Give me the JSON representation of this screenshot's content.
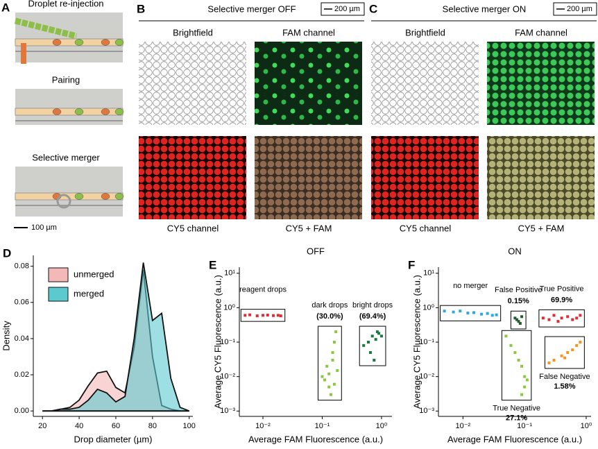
{
  "panels": {
    "A": {
      "label": "A",
      "images": [
        "Droplet re-injection",
        "Pairing",
        "Selective merger"
      ],
      "scale_bar": "100 µm"
    },
    "B": {
      "label": "B",
      "title": "Selective merger OFF",
      "scale_bar": "200 µm",
      "images": [
        "Brightfield",
        "FAM channel",
        "CY5 channel",
        "CY5 + FAM"
      ]
    },
    "C": {
      "label": "C",
      "title": "Selective merger ON",
      "scale_bar": "200 µm",
      "images": [
        "Brightfield",
        "FAM channel",
        "CY5 channel",
        "CY5 + FAM"
      ]
    }
  },
  "chart_data": [
    {
      "type": "area",
      "panel": "D",
      "xlabel": "Drop diameter (µm)",
      "ylabel": "Density",
      "x": [
        20,
        25,
        30,
        35,
        40,
        45,
        50,
        55,
        60,
        65,
        70,
        75,
        80,
        85,
        90,
        95,
        100
      ],
      "series": [
        {
          "name": "unmerged",
          "color": "#f4b8b8",
          "values": [
            0,
            0,
            0.001,
            0.002,
            0.006,
            0.014,
            0.021,
            0.022,
            0.013,
            0.01,
            0.035,
            0.078,
            0.03,
            0.003,
            0.001,
            0,
            0
          ]
        },
        {
          "name": "merged",
          "color": "#5cc9cf",
          "values": [
            0,
            0,
            0.001,
            0.001,
            0.002,
            0.006,
            0.012,
            0.01,
            0.005,
            0.008,
            0.04,
            0.082,
            0.05,
            0.054,
            0.018,
            0.002,
            0
          ]
        }
      ],
      "xlim": [
        15,
        102
      ],
      "xticks": [
        20,
        40,
        60,
        80,
        100
      ],
      "ylim": [
        -0.003,
        0.086
      ],
      "yticks": [
        {
          "value": 0,
          "label": "0.00"
        },
        0.02,
        0.04,
        0.06,
        0.08
      ],
      "legend": "upper left"
    },
    {
      "type": "scatter",
      "panel": "E",
      "title": "OFF",
      "log_x": true,
      "log_y": true,
      "xlabel": "Average FAM Fluorescence (a.u.)",
      "ylabel": "Average CY5 Fluorescence (a.u.)",
      "xlim": [
        0.004,
        1.5
      ],
      "xticks": [
        {
          "value": 0.01,
          "label": "10⁻²"
        },
        {
          "value": 0.1,
          "label": "10⁻¹"
        },
        {
          "value": 1,
          "label": "10⁰"
        }
      ],
      "ylim": [
        0.0007,
        15
      ],
      "yticks": [
        {
          "value": 0.001,
          "label": "10⁻³"
        },
        {
          "value": 0.01,
          "label": "10⁻²"
        },
        {
          "value": 0.1,
          "label": "10⁻¹"
        },
        {
          "value": 1,
          "label": "10⁰"
        },
        {
          "value": 10,
          "label": "10¹"
        }
      ],
      "series": [
        {
          "name": "reagent drops",
          "color": "#e02b35",
          "x": [
            0.005,
            0.006,
            0.008,
            0.01,
            0.012,
            0.015,
            0.018,
            0.02
          ],
          "y": [
            0.6,
            0.62,
            0.58,
            0.6,
            0.61,
            0.59,
            0.6,
            0.58
          ]
        },
        {
          "name": "dark drops",
          "share": "(30.0%)",
          "color": "#8cc63f",
          "x": [
            0.1,
            0.12,
            0.13,
            0.15,
            0.16,
            0.14,
            0.17,
            0.18,
            0.11,
            0.15,
            0.13,
            0.16
          ],
          "y": [
            0.01,
            0.02,
            0.005,
            0.03,
            0.1,
            0.003,
            0.2,
            0.015,
            0.008,
            0.05,
            0.012,
            0.006
          ]
        },
        {
          "name": "bright drops",
          "share": "(69.4%)",
          "color": "#1a7a3a",
          "x": [
            0.5,
            0.6,
            0.7,
            0.8,
            0.9,
            1.0,
            0.65,
            0.75,
            0.85
          ],
          "y": [
            0.08,
            0.1,
            0.15,
            0.12,
            0.18,
            0.15,
            0.05,
            0.03,
            0.2
          ]
        }
      ]
    },
    {
      "type": "scatter",
      "panel": "F",
      "title": "ON",
      "log_x": true,
      "log_y": true,
      "xlabel": "Average FAM Fluorescence (a.u.)",
      "ylabel": "Average CY5 Fluorescence (a.u.)",
      "xlim": [
        0.004,
        1.2
      ],
      "xticks": [
        {
          "value": 0.01,
          "label": "10⁻²"
        },
        {
          "value": 0.1,
          "label": "10⁻¹"
        },
        {
          "value": 1,
          "label": "10⁰"
        }
      ],
      "ylim": [
        0.0007,
        15
      ],
      "yticks": [
        {
          "value": 0.001,
          "label": "10⁻³"
        },
        {
          "value": 0.01,
          "label": "10⁻²"
        },
        {
          "value": 0.1,
          "label": "10⁻¹"
        },
        {
          "value": 1,
          "label": "10⁰"
        },
        {
          "value": 10,
          "label": "10¹"
        }
      ],
      "series": [
        {
          "name": "no merger",
          "color": "#29abe2",
          "x": [
            0.005,
            0.007,
            0.009,
            0.012,
            0.015,
            0.02,
            0.025,
            0.03,
            0.035
          ],
          "y": [
            0.8,
            0.75,
            0.8,
            0.7,
            0.72,
            0.65,
            0.68,
            0.6,
            0.62
          ]
        },
        {
          "name": "False Positive",
          "share": "0.15%",
          "color": "#1e5e2a",
          "x": [
            0.07,
            0.08,
            0.09,
            0.085,
            0.075
          ],
          "y": [
            0.5,
            0.4,
            0.55,
            0.35,
            0.45
          ]
        },
        {
          "name": "True Positive",
          "share": "69.9%",
          "color": "#e02b35",
          "x": [
            0.2,
            0.25,
            0.3,
            0.4,
            0.5,
            0.6,
            0.7,
            0.8,
            0.35
          ],
          "y": [
            0.5,
            0.45,
            0.6,
            0.5,
            0.55,
            0.45,
            0.5,
            0.6,
            0.4
          ]
        },
        {
          "name": "True Negative",
          "share": "27.1%",
          "color": "#8cc63f",
          "x": [
            0.05,
            0.06,
            0.07,
            0.08,
            0.09,
            0.1,
            0.11,
            0.1,
            0.09
          ],
          "y": [
            0.15,
            0.08,
            0.05,
            0.03,
            0.02,
            0.01,
            0.008,
            0.005,
            0.003
          ]
        },
        {
          "name": "False Negative",
          "share": "1.58%",
          "color": "#f7931e",
          "x": [
            0.25,
            0.3,
            0.4,
            0.5,
            0.6,
            0.7,
            0.8,
            0.45
          ],
          "y": [
            0.025,
            0.03,
            0.04,
            0.05,
            0.06,
            0.08,
            0.1,
            0.035
          ]
        }
      ]
    }
  ]
}
